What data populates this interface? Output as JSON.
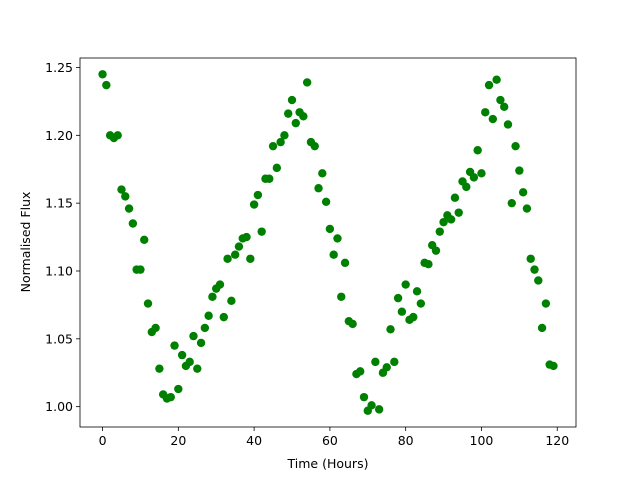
{
  "chart_data": {
    "type": "scatter",
    "xlabel": "Time (Hours)",
    "ylabel": "Normalised Flux",
    "color": "#008000",
    "x": [
      0,
      1,
      2,
      3,
      4,
      5,
      6,
      7,
      8,
      9,
      10,
      11,
      12,
      13,
      14,
      15,
      16,
      17,
      18,
      19,
      20,
      21,
      22,
      23,
      24,
      25,
      26,
      27,
      28,
      29,
      30,
      31,
      32,
      33,
      34,
      35,
      36,
      37,
      38,
      39,
      40,
      41,
      42,
      43,
      44,
      45,
      46,
      47,
      48,
      49,
      50,
      51,
      52,
      53,
      54,
      55,
      56,
      57,
      58,
      59,
      60,
      61,
      62,
      63,
      64,
      65,
      66,
      67,
      68,
      69,
      70,
      71,
      72,
      73,
      74,
      75,
      76,
      77,
      78,
      79,
      80,
      81,
      82,
      83,
      84,
      85,
      86,
      87,
      88,
      89,
      90,
      91,
      92,
      93,
      94,
      95,
      96,
      97,
      98,
      99,
      100,
      101,
      102,
      103,
      104,
      105,
      106,
      107,
      108,
      109,
      110,
      111,
      112,
      113,
      114,
      115,
      116,
      117,
      118,
      119
    ],
    "values": [
      1.245,
      1.237,
      1.2,
      1.198,
      1.2,
      1.16,
      1.155,
      1.146,
      1.135,
      1.101,
      1.101,
      1.123,
      1.076,
      1.055,
      1.058,
      1.028,
      1.009,
      1.006,
      1.007,
      1.045,
      1.013,
      1.038,
      1.03,
      1.033,
      1.052,
      1.028,
      1.047,
      1.058,
      1.067,
      1.081,
      1.087,
      1.09,
      1.066,
      1.109,
      1.078,
      1.112,
      1.118,
      1.124,
      1.125,
      1.109,
      1.149,
      1.156,
      1.129,
      1.168,
      1.168,
      1.192,
      1.176,
      1.195,
      1.2,
      1.216,
      1.226,
      1.209,
      1.217,
      1.214,
      1.239,
      1.195,
      1.192,
      1.161,
      1.172,
      1.151,
      1.131,
      1.112,
      1.124,
      1.081,
      1.106,
      1.063,
      1.061,
      1.024,
      1.026,
      1.007,
      0.997,
      1.001,
      1.033,
      0.998,
      1.025,
      1.029,
      1.057,
      1.033,
      1.08,
      1.07,
      1.09,
      1.064,
      1.066,
      1.085,
      1.076,
      1.106,
      1.105,
      1.119,
      1.115,
      1.129,
      1.136,
      1.141,
      1.138,
      1.154,
      1.143,
      1.166,
      1.162,
      1.173,
      1.169,
      1.189,
      1.172,
      1.217,
      1.237,
      1.212,
      1.241,
      1.226,
      1.221,
      1.208,
      1.15,
      1.192,
      1.174,
      1.158,
      1.146,
      1.109,
      1.101,
      1.093,
      1.058,
      1.076,
      1.031,
      1.03
    ],
    "xlim": [
      -5.95,
      124.95
    ],
    "xticks": [
      0,
      20,
      40,
      60,
      80,
      100,
      120
    ],
    "ylim": [
      0.985,
      1.257
    ],
    "yticks": [
      {
        "value": 1.0,
        "label": "1.00"
      },
      1.05,
      {
        "value": 1.1,
        "label": "1.10"
      },
      1.15,
      {
        "value": 1.2,
        "label": "1.20"
      },
      1.25
    ]
  }
}
